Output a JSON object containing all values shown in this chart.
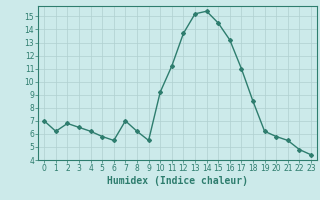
{
  "x": [
    0,
    1,
    2,
    3,
    4,
    5,
    6,
    7,
    8,
    9,
    10,
    11,
    12,
    13,
    14,
    15,
    16,
    17,
    18,
    19,
    20,
    21,
    22,
    23
  ],
  "y": [
    7.0,
    6.2,
    6.8,
    6.5,
    6.2,
    5.8,
    5.5,
    7.0,
    6.2,
    5.5,
    9.2,
    11.2,
    13.7,
    15.2,
    15.4,
    14.5,
    13.2,
    11.0,
    8.5,
    6.2,
    5.8,
    5.5,
    4.8,
    4.4
  ],
  "line_color": "#2e7d6e",
  "bg_color": "#cceaea",
  "grid_color": "#b0d0d0",
  "xlabel": "Humidex (Indice chaleur)",
  "ylim": [
    4,
    15.8
  ],
  "xlim": [
    -0.5,
    23.5
  ],
  "yticks": [
    4,
    5,
    6,
    7,
    8,
    9,
    10,
    11,
    12,
    13,
    14,
    15
  ],
  "xticks": [
    0,
    1,
    2,
    3,
    4,
    5,
    6,
    7,
    8,
    9,
    10,
    11,
    12,
    13,
    14,
    15,
    16,
    17,
    18,
    19,
    20,
    21,
    22,
    23
  ],
  "marker": "D",
  "markersize": 2.0,
  "linewidth": 1.0,
  "xlabel_fontsize": 7,
  "tick_fontsize": 5.5
}
